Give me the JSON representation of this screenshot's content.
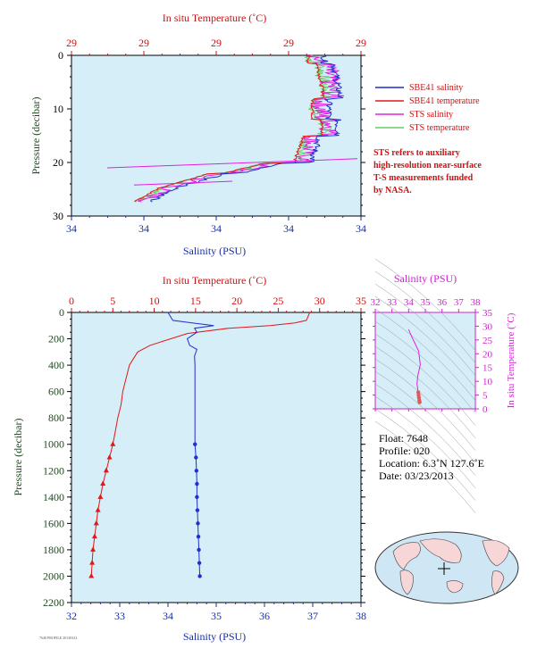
{
  "top_panel": {
    "title_top": "In situ Temperature (˚C)",
    "top_ticks": [
      "29",
      "29",
      "29",
      "29",
      "29"
    ],
    "bottom_ticks": [
      "34",
      "34",
      "34",
      "34",
      "34"
    ],
    "xlabel": "Salinity (PSU)",
    "ylabel": "Pressure (decibar)",
    "y_ticks": [
      "0",
      "10",
      "20",
      "30"
    ],
    "legend": [
      {
        "label": "SBE41 salinity",
        "color": "#1f2fd0"
      },
      {
        "label": "SBE41 temperature",
        "color": "#e01818"
      },
      {
        "label": "STS salinity",
        "color": "#e020e0"
      },
      {
        "label": "STS temperature",
        "color": "#66cc66"
      }
    ],
    "note": [
      "STS refers to auxiliary",
      "high-resolution near-surface",
      "T-S measurements funded",
      "by NASA."
    ]
  },
  "main_panel": {
    "title_top": "In situ Temperature (˚C)",
    "top_ticks": [
      "0",
      "5",
      "10",
      "15",
      "20",
      "25",
      "30",
      "35"
    ],
    "bottom_ticks": [
      "32",
      "33",
      "34",
      "35",
      "36",
      "37",
      "38"
    ],
    "xlabel": "Salinity (PSU)",
    "ylabel": "Pressure (decibar)",
    "y_ticks": [
      "0",
      "200",
      "400",
      "600",
      "800",
      "1000",
      "1200",
      "1400",
      "1600",
      "1800",
      "2000",
      "2200"
    ]
  },
  "ts_panel": {
    "title": "Salinity (PSU)",
    "x_ticks": [
      "32",
      "33",
      "34",
      "35",
      "36",
      "37",
      "38"
    ],
    "y_ticks": [
      "0",
      "5",
      "10",
      "15",
      "20",
      "25",
      "30",
      "35"
    ],
    "ylabel": "In situ Temperature (˚C)"
  },
  "info": {
    "float": "Float:  7648",
    "profile": "Profile:  020",
    "location": "Location:  6.3˚N  127.6˚E",
    "date": "Date:  03/23/2013"
  },
  "footer_mark": "7648 PROFILE 20130323",
  "colors": {
    "plot_bg": "#d6eef7",
    "temperature": "#e01818",
    "salinity": "#1f2fd0",
    "sts_salinity": "#e020e0",
    "sts_temperature": "#66cc66",
    "axis_red": "#d01010",
    "axis_blue": "#1a2fa0",
    "pressure_label": "#1e4a1e",
    "ts_magenta": "#cc22cc"
  },
  "chart_data": [
    {
      "type": "line",
      "name": "main-profile",
      "x_axis": "Salinity (PSU)",
      "x2_axis": "In situ Temperature (˚C)",
      "y_axis": "Pressure (decibar)",
      "xlim": [
        32,
        38
      ],
      "x2lim": [
        0,
        35
      ],
      "ylim": [
        2200,
        0
      ],
      "series": [
        {
          "name": "temperature",
          "color": "#e01818",
          "points": [
            [
              28.8,
              0
            ],
            [
              28.6,
              30
            ],
            [
              28.4,
              60
            ],
            [
              27.0,
              80
            ],
            [
              24.0,
              100
            ],
            [
              19.0,
              120
            ],
            [
              14.0,
              160
            ],
            [
              12.0,
              200
            ],
            [
              9.5,
              250
            ],
            [
              8.0,
              300
            ],
            [
              7.5,
              350
            ],
            [
              7.0,
              400
            ],
            [
              6.6,
              500
            ],
            [
              6.2,
              600
            ],
            [
              6.0,
              700
            ],
            [
              5.6,
              800
            ],
            [
              5.3,
              900
            ],
            [
              5.0,
              1000
            ],
            [
              4.6,
              1100
            ],
            [
              4.2,
              1200
            ],
            [
              3.8,
              1300
            ],
            [
              3.5,
              1400
            ],
            [
              3.2,
              1500
            ],
            [
              3.0,
              1600
            ],
            [
              2.8,
              1700
            ],
            [
              2.6,
              1800
            ],
            [
              2.5,
              1900
            ],
            [
              2.4,
              2000
            ]
          ],
          "markers_from": 1000
        },
        {
          "name": "salinity",
          "color": "#1f2fd0",
          "points": [
            [
              34.0,
              0
            ],
            [
              34.1,
              60
            ],
            [
              34.5,
              80
            ],
            [
              34.95,
              100
            ],
            [
              34.55,
              120
            ],
            [
              34.6,
              150
            ],
            [
              34.4,
              200
            ],
            [
              34.45,
              250
            ],
            [
              34.6,
              280
            ],
            [
              34.55,
              330
            ],
            [
              34.56,
              400
            ],
            [
              34.56,
              500
            ],
            [
              34.56,
              600
            ],
            [
              34.56,
              700
            ],
            [
              34.56,
              800
            ],
            [
              34.56,
              900
            ],
            [
              34.56,
              1000
            ],
            [
              34.58,
              1100
            ],
            [
              34.59,
              1200
            ],
            [
              34.6,
              1300
            ],
            [
              34.6,
              1400
            ],
            [
              34.61,
              1500
            ],
            [
              34.62,
              1600
            ],
            [
              34.63,
              1700
            ],
            [
              34.64,
              1800
            ],
            [
              34.65,
              1900
            ],
            [
              34.66,
              2000
            ]
          ],
          "markers_from": 1000
        }
      ]
    },
    {
      "type": "line",
      "name": "near-surface",
      "x_axis": "Salinity (PSU)",
      "x2_axis": "In situ Temperature (˚C)",
      "y_axis": "Pressure (decibar)",
      "ylim": [
        30,
        0
      ],
      "note": "axis tick labels all read 34 (bottom) and 29 (top)",
      "series": [
        {
          "name": "SBE41 salinity",
          "color": "#1f2fd0"
        },
        {
          "name": "SBE41 temperature",
          "color": "#e01818"
        },
        {
          "name": "STS salinity",
          "color": "#e020e0"
        },
        {
          "name": "STS temperature",
          "color": "#66cc66"
        }
      ]
    },
    {
      "type": "scatter",
      "name": "ts-diagram",
      "xlabel": "",
      "x_axis": "Salinity (PSU)",
      "y_axis": "In situ Temperature (˚C)",
      "xlim": [
        32,
        38
      ],
      "ylim": [
        0,
        35
      ],
      "points": [
        [
          34.0,
          28.8
        ],
        [
          34.2,
          26.0
        ],
        [
          34.6,
          21.0
        ],
        [
          34.7,
          16.0
        ],
        [
          34.55,
          12.0
        ],
        [
          34.5,
          9.0
        ],
        [
          34.55,
          7.0
        ],
        [
          34.58,
          6.0
        ],
        [
          34.6,
          5.0
        ],
        [
          34.62,
          4.0
        ],
        [
          34.64,
          3.0
        ],
        [
          34.66,
          2.4
        ]
      ]
    }
  ]
}
